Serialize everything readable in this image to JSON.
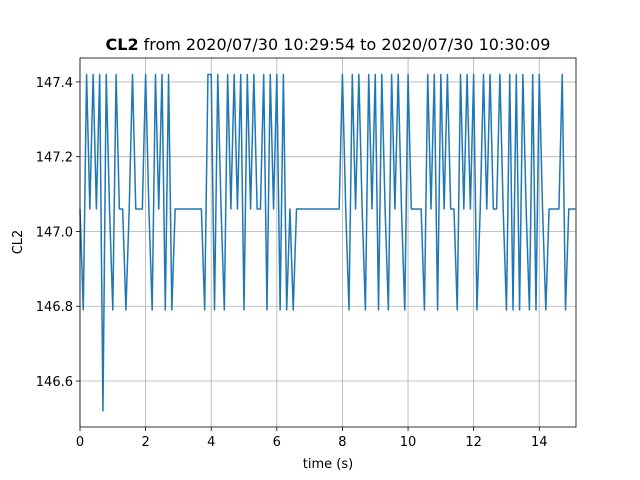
{
  "chart_data": {
    "type": "line",
    "title_bold": "CL2",
    "title": "from 2020/07/30 10:29:54 to 2020/07/30 10:30:09",
    "x_label": "time (s)",
    "y_label": "CL2",
    "xlim": [
      0,
      15.12
    ],
    "ylim": [
      146.477,
      147.464
    ],
    "xticks": [
      0,
      2,
      4,
      6,
      8,
      10,
      12,
      14
    ],
    "yticks": [
      146.6,
      146.8,
      {
        "value": 147,
        "label": "147.0"
      },
      147.2,
      147.4
    ],
    "grid": true,
    "x": [
      0,
      0.1,
      0.2,
      0.3,
      0.4,
      0.5,
      0.6,
      0.7,
      0.8,
      0.9,
      1,
      1.1,
      1.2,
      1.3,
      1.4,
      1.5,
      1.6,
      1.7,
      1.8,
      1.9,
      2,
      2.1,
      2.2,
      2.3,
      2.4,
      2.5,
      2.6,
      2.7,
      2.8,
      2.9,
      3,
      3.1,
      3.2,
      3.3,
      3.4,
      3.5,
      3.6,
      3.7,
      3.8,
      3.9,
      4,
      4.1,
      4.2,
      4.3,
      4.4,
      4.5,
      4.6,
      4.7,
      4.8,
      4.9,
      5,
      5.1,
      5.2,
      5.3,
      5.4,
      5.5,
      5.6,
      5.7,
      5.8,
      5.9,
      6,
      6.1,
      6.2,
      6.3,
      6.4,
      6.5,
      6.6,
      6.7,
      6.8,
      6.9,
      7,
      7.1,
      7.2,
      7.3,
      7.4,
      7.5,
      7.6,
      7.7,
      7.8,
      7.9,
      8,
      8.1,
      8.2,
      8.3,
      8.4,
      8.5,
      8.6,
      8.7,
      8.8,
      8.9,
      9,
      9.1,
      9.2,
      9.3,
      9.4,
      9.5,
      9.6,
      9.7,
      9.8,
      9.9,
      10,
      10.1,
      10.2,
      10.3,
      10.4,
      10.5,
      10.6,
      10.7,
      10.8,
      10.9,
      11,
      11.1,
      11.2,
      11.3,
      11.4,
      11.5,
      11.6,
      11.7,
      11.8,
      11.9,
      12,
      12.1,
      12.2,
      12.3,
      12.4,
      12.5,
      12.6,
      12.7,
      12.8,
      12.9,
      13,
      13.1,
      13.2,
      13.3,
      13.4,
      13.5,
      13.6,
      13.7,
      13.8,
      13.9,
      14,
      14.1,
      14.2,
      14.3,
      14.4,
      14.5,
      14.6,
      14.7,
      14.8,
      14.9,
      15,
      15.1
    ],
    "series": [
      {
        "name": "CL2",
        "color": "#1f77b4",
        "values": [
          147.06,
          146.79,
          147.42,
          147.06,
          147.42,
          147.06,
          147.42,
          146.52,
          147.42,
          147.06,
          146.79,
          147.42,
          147.06,
          147.06,
          146.79,
          147.06,
          147.42,
          147.06,
          147.06,
          147.06,
          147.42,
          147.06,
          146.79,
          147.42,
          147.06,
          147.42,
          146.79,
          147.42,
          146.79,
          147.06,
          147.06,
          147.06,
          147.06,
          147.06,
          147.06,
          147.06,
          147.06,
          147.06,
          146.79,
          147.42,
          147.42,
          146.79,
          147.42,
          147.06,
          146.79,
          147.42,
          147.06,
          147.42,
          147.06,
          147.42,
          146.79,
          147.42,
          147.06,
          147.42,
          147.06,
          147.06,
          147.42,
          146.79,
          147.42,
          147.06,
          147.42,
          146.79,
          147.42,
          146.79,
          147.06,
          146.79,
          147.06,
          147.06,
          147.06,
          147.06,
          147.06,
          147.06,
          147.06,
          147.06,
          147.06,
          147.06,
          147.06,
          147.06,
          147.06,
          147.06,
          147.42,
          147.06,
          146.79,
          147.42,
          147.06,
          147.42,
          147.06,
          146.79,
          147.42,
          147.06,
          147.42,
          146.79,
          147.42,
          147.06,
          146.79,
          147.42,
          147.06,
          147.42,
          147.06,
          146.79,
          147.42,
          147.06,
          147.06,
          147.06,
          147.06,
          146.79,
          147.42,
          147.06,
          147.42,
          146.79,
          147.42,
          147.06,
          147.42,
          147.06,
          147.06,
          146.79,
          147.42,
          147.06,
          147.42,
          147.06,
          147.42,
          146.79,
          147.06,
          147.42,
          147.06,
          147.42,
          147.06,
          147.06,
          147.42,
          147.06,
          146.79,
          147.42,
          146.79,
          147.42,
          146.79,
          147.42,
          147.06,
          146.79,
          147.42,
          146.79,
          147.42,
          147.06,
          146.79,
          147.06,
          147.06,
          147.06,
          147.06,
          147.42,
          146.79,
          147.06,
          147.06,
          147.06
        ]
      }
    ]
  }
}
